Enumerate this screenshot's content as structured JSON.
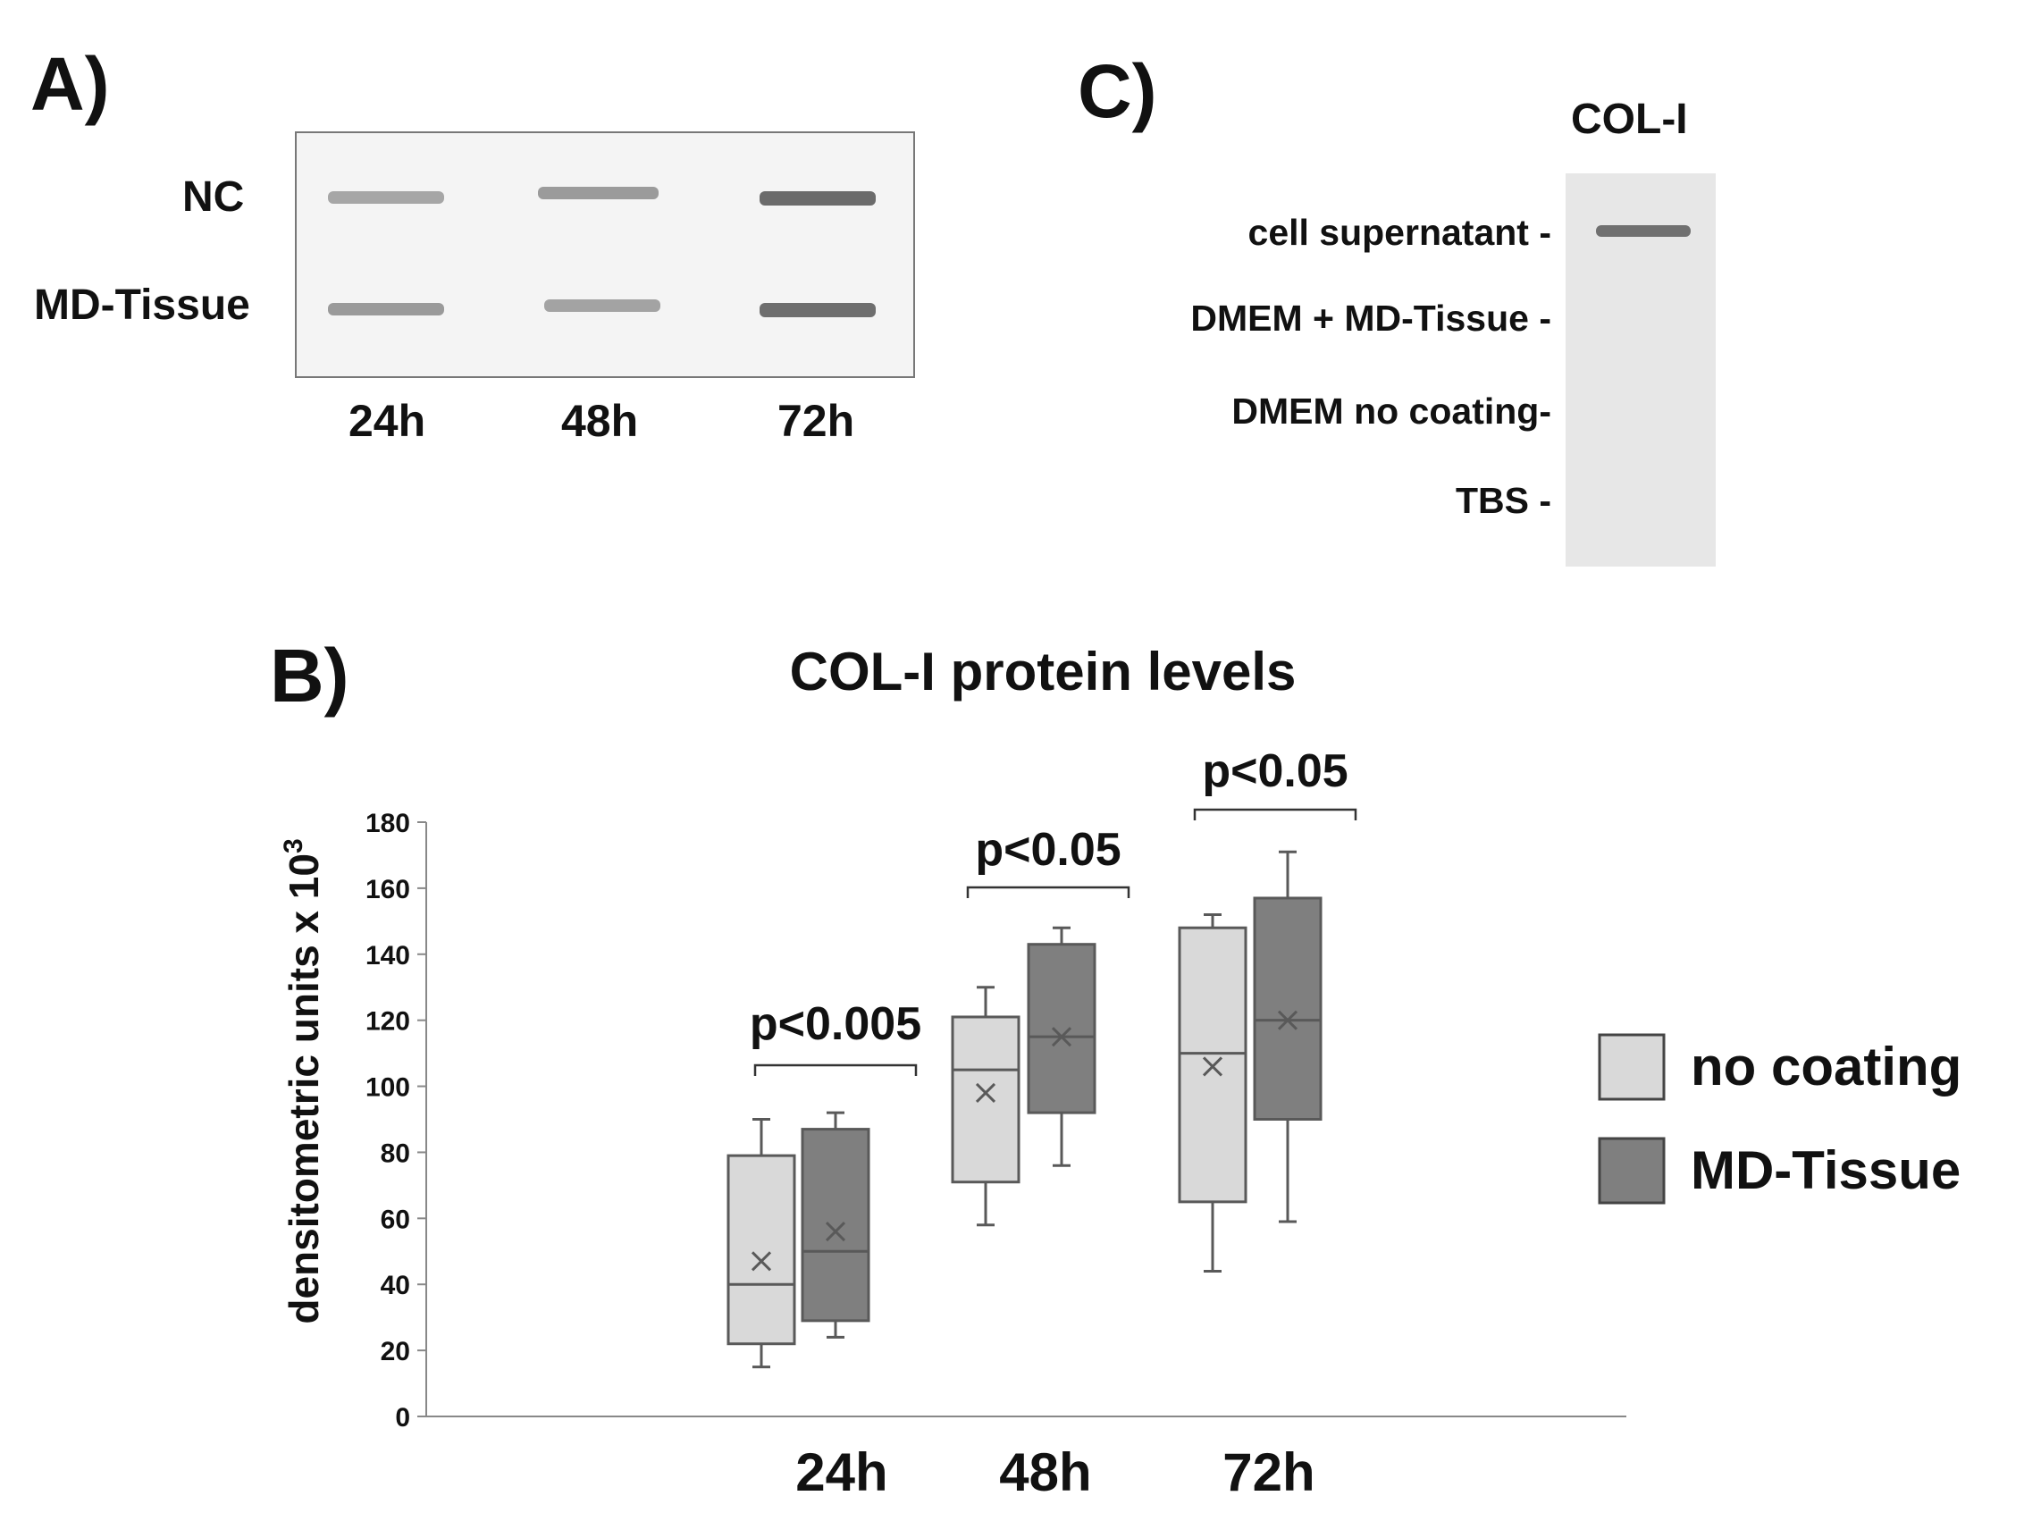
{
  "panel_a": {
    "label": "A)",
    "rows": [
      "NC",
      "MD-Tissue"
    ],
    "lanes": [
      "24h",
      "48h",
      "72h"
    ]
  },
  "panel_c": {
    "label": "C)",
    "column_title": "COL-I",
    "lanes": [
      "cell supernatant -",
      "DMEM + MD-Tissue -",
      "DMEM no coating-",
      "TBS -"
    ]
  },
  "panel_b": {
    "label": "B)"
  },
  "colors": {
    "no_coating_fill": "#d9d9d9",
    "md_tissue_fill": "#7f7f7f",
    "box_stroke": "#595959",
    "axis": "#888888"
  },
  "chart_data": {
    "type": "box",
    "title": "COL-I protein levels",
    "xlabel": "",
    "ylabel": "densitometric units x 10",
    "ylabel_superscript": "3",
    "ylim": [
      0,
      180
    ],
    "yticks": [
      0,
      20,
      40,
      60,
      80,
      100,
      120,
      140,
      160,
      180
    ],
    "categories": [
      "24h",
      "48h",
      "72h"
    ],
    "legend_position": "right",
    "series": [
      {
        "name": "no coating",
        "boxes": [
          {
            "min": 15,
            "q1": 22,
            "median": 40,
            "q3": 79,
            "max": 90,
            "mean": 47
          },
          {
            "min": 58,
            "q1": 71,
            "median": 105,
            "q3": 121,
            "max": 130,
            "mean": 98
          },
          {
            "min": 44,
            "q1": 65,
            "median": 110,
            "q3": 148,
            "max": 152,
            "mean": 106
          }
        ]
      },
      {
        "name": "MD-Tissue",
        "boxes": [
          {
            "min": 24,
            "q1": 29,
            "median": 50,
            "q3": 87,
            "max": 92,
            "mean": 56
          },
          {
            "min": 76,
            "q1": 92,
            "median": 115,
            "q3": 143,
            "max": 148,
            "mean": 115
          },
          {
            "min": 59,
            "q1": 90,
            "median": 120,
            "q3": 157,
            "max": 171,
            "mean": 120
          }
        ]
      }
    ],
    "annotations": [
      "p<0.005",
      "p<0.05",
      "p<0.05"
    ]
  }
}
